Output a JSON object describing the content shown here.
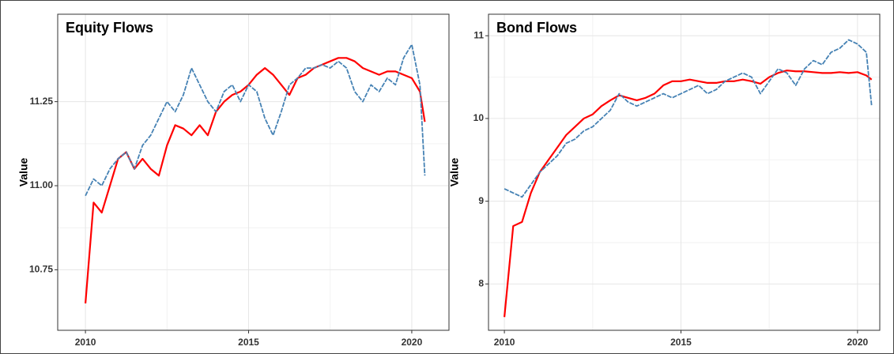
{
  "chart_data": [
    {
      "type": "line",
      "title": "Equity Flows",
      "y_label": "Value",
      "grid": true,
      "x": [
        2010,
        2010.25,
        2010.5,
        2010.75,
        2011,
        2011.25,
        2011.5,
        2011.75,
        2012,
        2012.25,
        2012.5,
        2012.75,
        2013,
        2013.25,
        2013.5,
        2013.75,
        2014,
        2014.25,
        2014.5,
        2014.75,
        2015,
        2015.25,
        2015.5,
        2015.75,
        2016,
        2016.25,
        2016.5,
        2016.75,
        2017,
        2017.25,
        2017.5,
        2017.75,
        2018,
        2018.25,
        2018.5,
        2018.75,
        2019,
        2019.25,
        2019.5,
        2019.75,
        2020,
        2020.25,
        2020.4
      ],
      "xlim": [
        2009.15,
        2021.14
      ],
      "xticks": [
        2010,
        2015,
        2020
      ],
      "ylim": [
        10.57,
        11.51
      ],
      "yticks": [
        10.75,
        {
          "value": 11,
          "label": "11.00"
        },
        11.25
      ],
      "series": [
        {
          "color": "#ff0000",
          "style": "solid",
          "values": [
            10.65,
            10.95,
            10.92,
            11.0,
            11.08,
            11.1,
            11.05,
            11.08,
            11.05,
            11.03,
            11.12,
            11.18,
            11.17,
            11.15,
            11.18,
            11.15,
            11.22,
            11.25,
            11.27,
            11.28,
            11.3,
            11.33,
            11.35,
            11.33,
            11.3,
            11.27,
            11.32,
            11.33,
            11.35,
            11.36,
            11.37,
            11.38,
            11.38,
            11.37,
            11.35,
            11.34,
            11.33,
            11.34,
            11.34,
            11.33,
            11.32,
            11.28,
            11.19
          ]
        },
        {
          "color": "#4682b4",
          "style": "dashed",
          "values": [
            10.97,
            11.02,
            11.0,
            11.05,
            11.08,
            11.1,
            11.05,
            11.12,
            11.15,
            11.2,
            11.25,
            11.22,
            11.27,
            11.35,
            11.3,
            11.25,
            11.22,
            11.28,
            11.3,
            11.25,
            11.3,
            11.28,
            11.2,
            11.15,
            11.22,
            11.3,
            11.32,
            11.35,
            11.35,
            11.36,
            11.35,
            11.37,
            11.35,
            11.28,
            11.25,
            11.3,
            11.28,
            11.32,
            11.3,
            11.38,
            11.42,
            11.3,
            11.03
          ]
        }
      ]
    },
    {
      "type": "line",
      "title": "Bond Flows",
      "y_label": "Value",
      "grid": true,
      "x": [
        2010,
        2010.25,
        2010.5,
        2010.75,
        2011,
        2011.25,
        2011.5,
        2011.75,
        2012,
        2012.25,
        2012.5,
        2012.75,
        2013,
        2013.25,
        2013.5,
        2013.75,
        2014,
        2014.25,
        2014.5,
        2014.75,
        2015,
        2015.25,
        2015.5,
        2015.75,
        2016,
        2016.25,
        2016.5,
        2016.75,
        2017,
        2017.25,
        2017.5,
        2017.75,
        2018,
        2018.25,
        2018.5,
        2018.75,
        2019,
        2019.25,
        2019.5,
        2019.75,
        2020,
        2020.25,
        2020.4
      ],
      "xlim": [
        2009.55,
        2020.63
      ],
      "xticks": [
        2010,
        2015,
        2020
      ],
      "ylim": [
        7.44,
        11.26
      ],
      "yticks": [
        8,
        9,
        10,
        11
      ],
      "series": [
        {
          "color": "#ff0000",
          "style": "solid",
          "values": [
            7.6,
            8.7,
            8.75,
            9.1,
            9.35,
            9.5,
            9.65,
            9.8,
            9.9,
            10.0,
            10.05,
            10.15,
            10.22,
            10.28,
            10.25,
            10.22,
            10.25,
            10.3,
            10.4,
            10.45,
            10.45,
            10.47,
            10.45,
            10.43,
            10.43,
            10.45,
            10.45,
            10.47,
            10.45,
            10.42,
            10.5,
            10.55,
            10.58,
            10.57,
            10.57,
            10.56,
            10.55,
            10.55,
            10.56,
            10.55,
            10.56,
            10.52,
            10.47
          ]
        },
        {
          "color": "#4682b4",
          "style": "dashed",
          "values": [
            9.15,
            9.1,
            9.05,
            9.2,
            9.35,
            9.45,
            9.55,
            9.7,
            9.75,
            9.85,
            9.9,
            10.0,
            10.1,
            10.3,
            10.2,
            10.15,
            10.2,
            10.25,
            10.3,
            10.25,
            10.3,
            10.35,
            10.4,
            10.3,
            10.35,
            10.45,
            10.5,
            10.55,
            10.5,
            10.3,
            10.45,
            10.6,
            10.55,
            10.4,
            10.6,
            10.7,
            10.65,
            10.8,
            10.85,
            10.95,
            10.9,
            10.8,
            10.15
          ]
        }
      ]
    }
  ]
}
